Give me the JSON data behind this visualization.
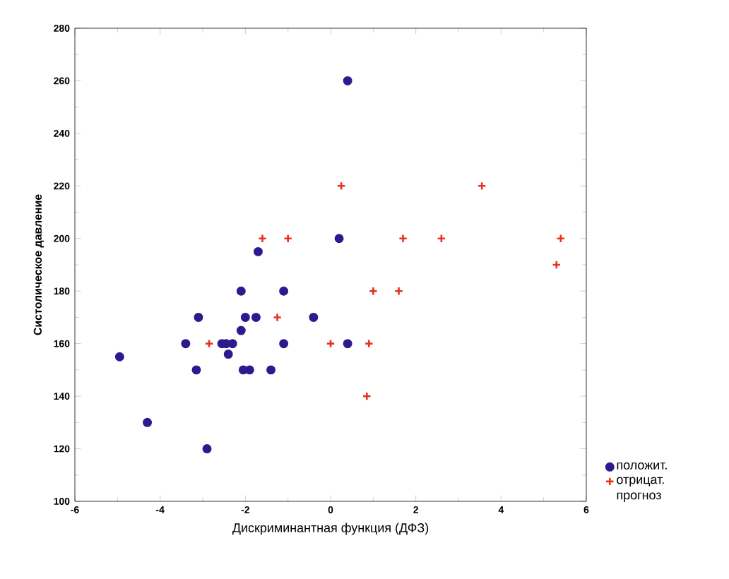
{
  "chart_data": {
    "type": "scatter",
    "xlabel": "Дискриминантная функция (ДФЗ)",
    "ylabel": "Систолическое давление",
    "xlim": [
      -6,
      6
    ],
    "ylim": [
      100,
      280
    ],
    "xticks": [
      -6,
      -4,
      -2,
      0,
      2,
      4,
      6
    ],
    "yticks": [
      100,
      120,
      140,
      160,
      180,
      200,
      220,
      240,
      260,
      280
    ],
    "grid": false,
    "legend": "bottom right",
    "series": [
      {
        "name": "положит.",
        "color": "#2e1a8e",
        "marker": "circle",
        "x": [
          0.4,
          0.2,
          -1.7,
          -2.1,
          -1.1,
          -3.1,
          -2.0,
          -1.75,
          -0.4,
          -2.1,
          -3.4,
          -2.55,
          -2.45,
          -2.3,
          -2.4,
          -1.1,
          0.4,
          -4.95,
          -3.15,
          -2.05,
          -1.9,
          -1.4,
          -4.3,
          -2.9
        ],
        "values": [
          260,
          200,
          195,
          180,
          180,
          170,
          170,
          170,
          170,
          165,
          160,
          160,
          160,
          160,
          156,
          160,
          160,
          155,
          150,
          150,
          150,
          150,
          130,
          120
        ]
      },
      {
        "name": "отрицат. прогноз",
        "color": "#e8321c",
        "marker": "cross",
        "x": [
          -1.6,
          -1.0,
          1.7,
          2.6,
          5.4,
          5.3,
          0.25,
          3.55,
          -1.25,
          -2.85,
          0.0,
          0.9,
          1.0,
          1.6,
          0.85
        ],
        "values": [
          200,
          200,
          200,
          200,
          200,
          190,
          220,
          220,
          170,
          160,
          160,
          160,
          180,
          180,
          140
        ]
      }
    ]
  }
}
